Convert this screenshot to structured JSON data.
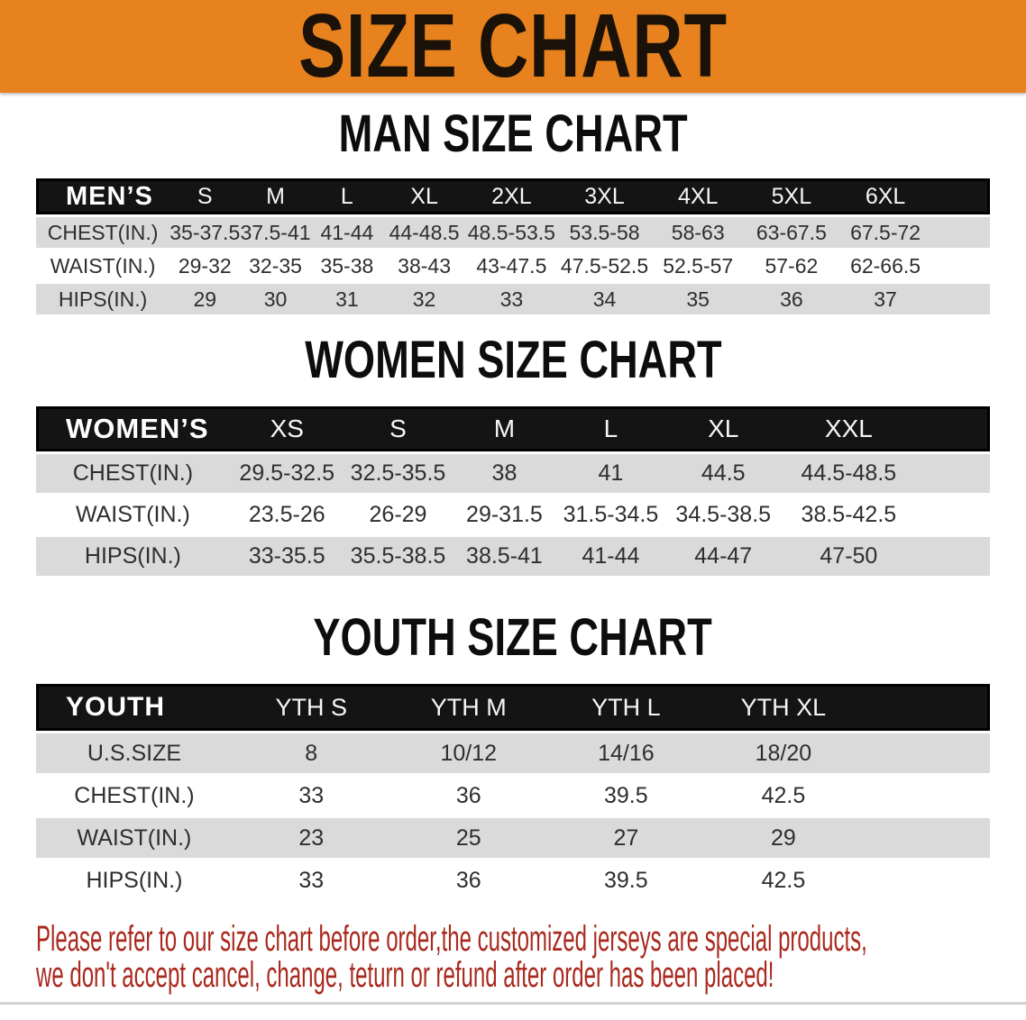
{
  "colors": {
    "banner_bg": "#E8821E",
    "header_bg": "#141414",
    "row_gray": "#DADADA",
    "disclaimer_red": "#A9291E"
  },
  "banner": {
    "title": "SIZE CHART"
  },
  "sections": [
    {
      "heading": "MAN SIZE CHART",
      "label": "MEN’S",
      "columns": [
        "S",
        "M",
        "L",
        "XL",
        "2XL",
        "3XL",
        "4XL",
        "5XL",
        "6XL"
      ],
      "rows": [
        {
          "label": "CHEST(IN.)",
          "values": [
            "35-37.5",
            "37.5-41",
            "41-44",
            "44-48.5",
            "48.5-53.5",
            "53.5-58",
            "58-63",
            "63-67.5",
            "67.5-72"
          ]
        },
        {
          "label": "WAIST(IN.)",
          "values": [
            "29-32",
            "32-35",
            "35-38",
            "38-43",
            "43-47.5",
            "47.5-52.5",
            "52.5-57",
            "57-62",
            "62-66.5"
          ]
        },
        {
          "label": "HIPS(IN.)",
          "values": [
            "29",
            "30",
            "31",
            "32",
            "33",
            "34",
            "35",
            "36",
            "37"
          ]
        }
      ]
    },
    {
      "heading": "WOMEN SIZE CHART",
      "label": "WOMEN’S",
      "columns": [
        "XS",
        "S",
        "M",
        "L",
        "XL",
        "XXL"
      ],
      "rows": [
        {
          "label": "CHEST(IN.)",
          "values": [
            "29.5-32.5",
            "32.5-35.5",
            "38",
            "41",
            "44.5",
            "44.5-48.5"
          ]
        },
        {
          "label": "WAIST(IN.)",
          "values": [
            "23.5-26",
            "26-29",
            "29-31.5",
            "31.5-34.5",
            "34.5-38.5",
            "38.5-42.5"
          ]
        },
        {
          "label": "HIPS(IN.)",
          "values": [
            "33-35.5",
            "35.5-38.5",
            "38.5-41",
            "41-44",
            "44-47",
            "47-50"
          ]
        }
      ]
    },
    {
      "heading": "YOUTH SIZE CHART",
      "label": "YOUTH",
      "columns": [
        "YTH S",
        "YTH M",
        "YTH L",
        "YTH XL"
      ],
      "rows": [
        {
          "label": "U.S.SIZE",
          "values": [
            "8",
            "10/12",
            "14/16",
            "18/20"
          ]
        },
        {
          "label": "CHEST(IN.)",
          "values": [
            "33",
            "36",
            "39.5",
            "42.5"
          ]
        },
        {
          "label": "WAIST(IN.)",
          "values": [
            "23",
            "25",
            "27",
            "29"
          ]
        },
        {
          "label": "HIPS(IN.)",
          "values": [
            "33",
            "36",
            "39.5",
            "42.5"
          ]
        }
      ]
    }
  ],
  "disclaimer": {
    "line1": "Please refer to our size chart before order,the customized jerseys are special products,",
    "line2": "we don't accept cancel, change, teturn or refund after order has been placed!"
  }
}
